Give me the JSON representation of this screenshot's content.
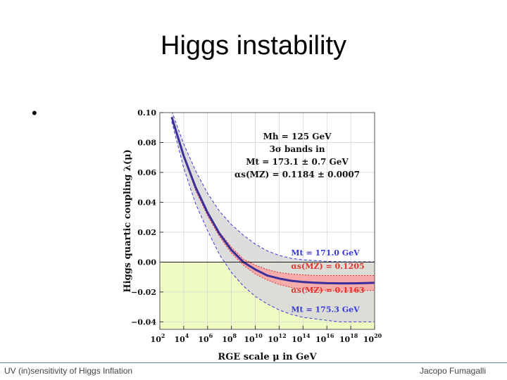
{
  "slide": {
    "title": "Higgs instability",
    "bullet": "•",
    "footer_left": "UV (in)sensitivity of Higgs Inflation",
    "footer_right": "Jacopo Fumagalli"
  },
  "colors": {
    "central_line": "#3b2f9a",
    "band_mt": "#d9d9d9",
    "band_alpha": "#f7a6a6",
    "instability_region": "#eefcc4",
    "mt_dashed": "#3a3ad6",
    "alpha_dashed": "#e0342f"
  },
  "chart_data": {
    "type": "line",
    "title": "",
    "xlabel": "RGE scale μ in GeV",
    "ylabel": "Higgs quartic coupling λ(μ)",
    "x_scale": "log10",
    "xlim_log10": [
      2,
      20
    ],
    "ylim": [
      -0.045,
      0.1
    ],
    "x_ticks": [
      {
        "exp": 2,
        "label": "2"
      },
      {
        "exp": 4,
        "label": "4"
      },
      {
        "exp": 6,
        "label": "6"
      },
      {
        "exp": 8,
        "label": "8"
      },
      {
        "exp": 10,
        "label": "10"
      },
      {
        "exp": 12,
        "label": "12"
      },
      {
        "exp": 14,
        "label": "14"
      },
      {
        "exp": 16,
        "label": "16"
      },
      {
        "exp": 18,
        "label": "18"
      },
      {
        "exp": 20,
        "label": "20"
      }
    ],
    "x_tick_base": "10",
    "y_ticks": [
      {
        "v": 0.1,
        "label": "0.10"
      },
      {
        "v": 0.08,
        "label": "0.08"
      },
      {
        "v": 0.06,
        "label": "0.06"
      },
      {
        "v": 0.04,
        "label": "0.04"
      },
      {
        "v": 0.02,
        "label": "0.02"
      },
      {
        "v": 0.0,
        "label": "0.00"
      },
      {
        "v": -0.02,
        "label": "−0.02"
      },
      {
        "v": -0.04,
        "label": "−0.04"
      }
    ],
    "grid": true,
    "shaded_region": {
      "from": -0.045,
      "to": 0.0
    },
    "x_log10": [
      3,
      4,
      5,
      6,
      7,
      8,
      9,
      10,
      11,
      12,
      13,
      14,
      15,
      16,
      17,
      18,
      19,
      20
    ],
    "series": [
      {
        "key": "central",
        "values": [
          0.097,
          0.071,
          0.05,
          0.033,
          0.019,
          0.008,
          0.0,
          -0.005,
          -0.009,
          -0.011,
          -0.0125,
          -0.0133,
          -0.0138,
          -0.0141,
          -0.0142,
          -0.0142,
          -0.0141,
          -0.0139
        ]
      },
      {
        "key": "mt_upper",
        "values": [
          0.101,
          0.079,
          0.061,
          0.046,
          0.034,
          0.025,
          0.018,
          0.012,
          0.0075,
          0.0045,
          0.0025,
          0.0015,
          0.001,
          0.0005,
          0.0003,
          0.0002,
          0.0002,
          0.0002
        ]
      },
      {
        "key": "mt_lower",
        "values": [
          0.094,
          0.063,
          0.039,
          0.021,
          0.005,
          -0.007,
          -0.016,
          -0.023,
          -0.028,
          -0.032,
          -0.035,
          -0.037,
          -0.038,
          -0.039,
          -0.04,
          -0.04,
          -0.04,
          -0.04
        ]
      },
      {
        "key": "alpha_upper",
        "values": [
          0.097,
          0.072,
          0.051,
          0.034,
          0.02,
          0.01,
          0.002,
          -0.002,
          -0.005,
          -0.007,
          -0.008,
          -0.0085,
          -0.009,
          -0.009,
          -0.009,
          -0.009,
          -0.009,
          -0.009
        ]
      },
      {
        "key": "alpha_lower",
        "values": [
          0.097,
          0.07,
          0.048,
          0.031,
          0.017,
          0.006,
          -0.002,
          -0.008,
          -0.012,
          -0.015,
          -0.017,
          -0.018,
          -0.019,
          -0.019,
          -0.0195,
          -0.0195,
          -0.019,
          -0.019
        ]
      }
    ],
    "legend_lines": [
      "Mh = 125 GeV",
      "3σ bands in",
      "Mt = 173.1 ± 0.7 GeV",
      "αs(MZ) = 0.1184 ± 0.0007"
    ],
    "annotations": [
      {
        "text": "Mt = 171.0 GeV",
        "color": "#3a3ad6",
        "at_log10": 13.0,
        "at_y": 0.0045
      },
      {
        "text": "αs(MZ) = 0.1205",
        "color": "#e0342f",
        "at_log10": 13.0,
        "at_y": -0.0045
      },
      {
        "text": "αs(MZ) = 0.1163",
        "color": "#e0342f",
        "at_log10": 13.0,
        "at_y": -0.0205
      },
      {
        "text": "Mt = 175.3 GeV",
        "color": "#3a3ad6",
        "at_log10": 13.0,
        "at_y": -0.0335
      }
    ]
  }
}
